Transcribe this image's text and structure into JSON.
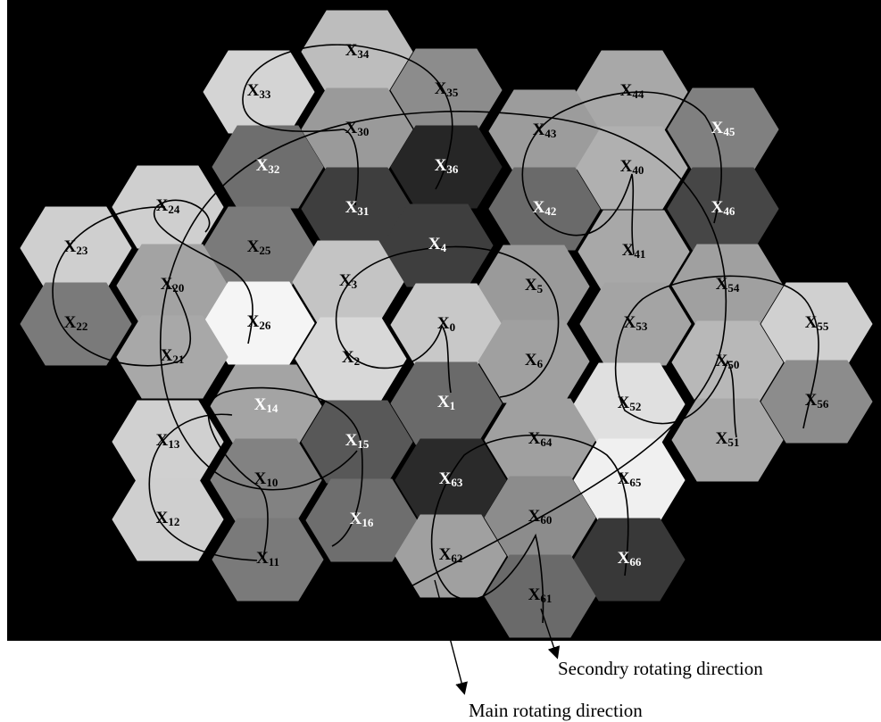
{
  "nodes": [
    {
      "label": "X",
      "sub": "34"
    },
    {
      "label": "X",
      "sub": "33"
    },
    {
      "label": "X",
      "sub": "35"
    },
    {
      "label": "X",
      "sub": "44"
    },
    {
      "label": "X",
      "sub": "30"
    },
    {
      "label": "X",
      "sub": "43"
    },
    {
      "label": "X",
      "sub": "45"
    },
    {
      "label": "X",
      "sub": "32"
    },
    {
      "label": "X",
      "sub": "36"
    },
    {
      "label": "X",
      "sub": "40"
    },
    {
      "label": "X",
      "sub": "24"
    },
    {
      "label": "X",
      "sub": "31"
    },
    {
      "label": "X",
      "sub": "42"
    },
    {
      "label": "X",
      "sub": "46"
    },
    {
      "label": "X",
      "sub": "23"
    },
    {
      "label": "X",
      "sub": "25"
    },
    {
      "label": "X",
      "sub": "4"
    },
    {
      "label": "X",
      "sub": "41"
    },
    {
      "label": "X",
      "sub": "20"
    },
    {
      "label": "X",
      "sub": "3"
    },
    {
      "label": "X",
      "sub": "5"
    },
    {
      "label": "X",
      "sub": "54"
    },
    {
      "label": "X",
      "sub": "22"
    },
    {
      "label": "X",
      "sub": "26"
    },
    {
      "label": "X",
      "sub": "0"
    },
    {
      "label": "X",
      "sub": "53"
    },
    {
      "label": "X",
      "sub": "55"
    },
    {
      "label": "X",
      "sub": "21"
    },
    {
      "label": "X",
      "sub": "2"
    },
    {
      "label": "X",
      "sub": "6"
    },
    {
      "label": "X",
      "sub": "50"
    },
    {
      "label": "X",
      "sub": "14"
    },
    {
      "label": "X",
      "sub": "1"
    },
    {
      "label": "X",
      "sub": "52"
    },
    {
      "label": "X",
      "sub": "56"
    },
    {
      "label": "X",
      "sub": "13"
    },
    {
      "label": "X",
      "sub": "15"
    },
    {
      "label": "X",
      "sub": "64"
    },
    {
      "label": "X",
      "sub": "51"
    },
    {
      "label": "X",
      "sub": "10"
    },
    {
      "label": "X",
      "sub": "63"
    },
    {
      "label": "X",
      "sub": "65"
    },
    {
      "label": "X",
      "sub": "12"
    },
    {
      "label": "X",
      "sub": "16"
    },
    {
      "label": "X",
      "sub": "60"
    },
    {
      "label": "X",
      "sub": "11"
    },
    {
      "label": "X",
      "sub": "62"
    },
    {
      "label": "X",
      "sub": "66"
    },
    {
      "label": "X",
      "sub": "61"
    }
  ],
  "annotations": {
    "secondary": "Secondry rotating direction",
    "main": "Main rotating direction"
  }
}
